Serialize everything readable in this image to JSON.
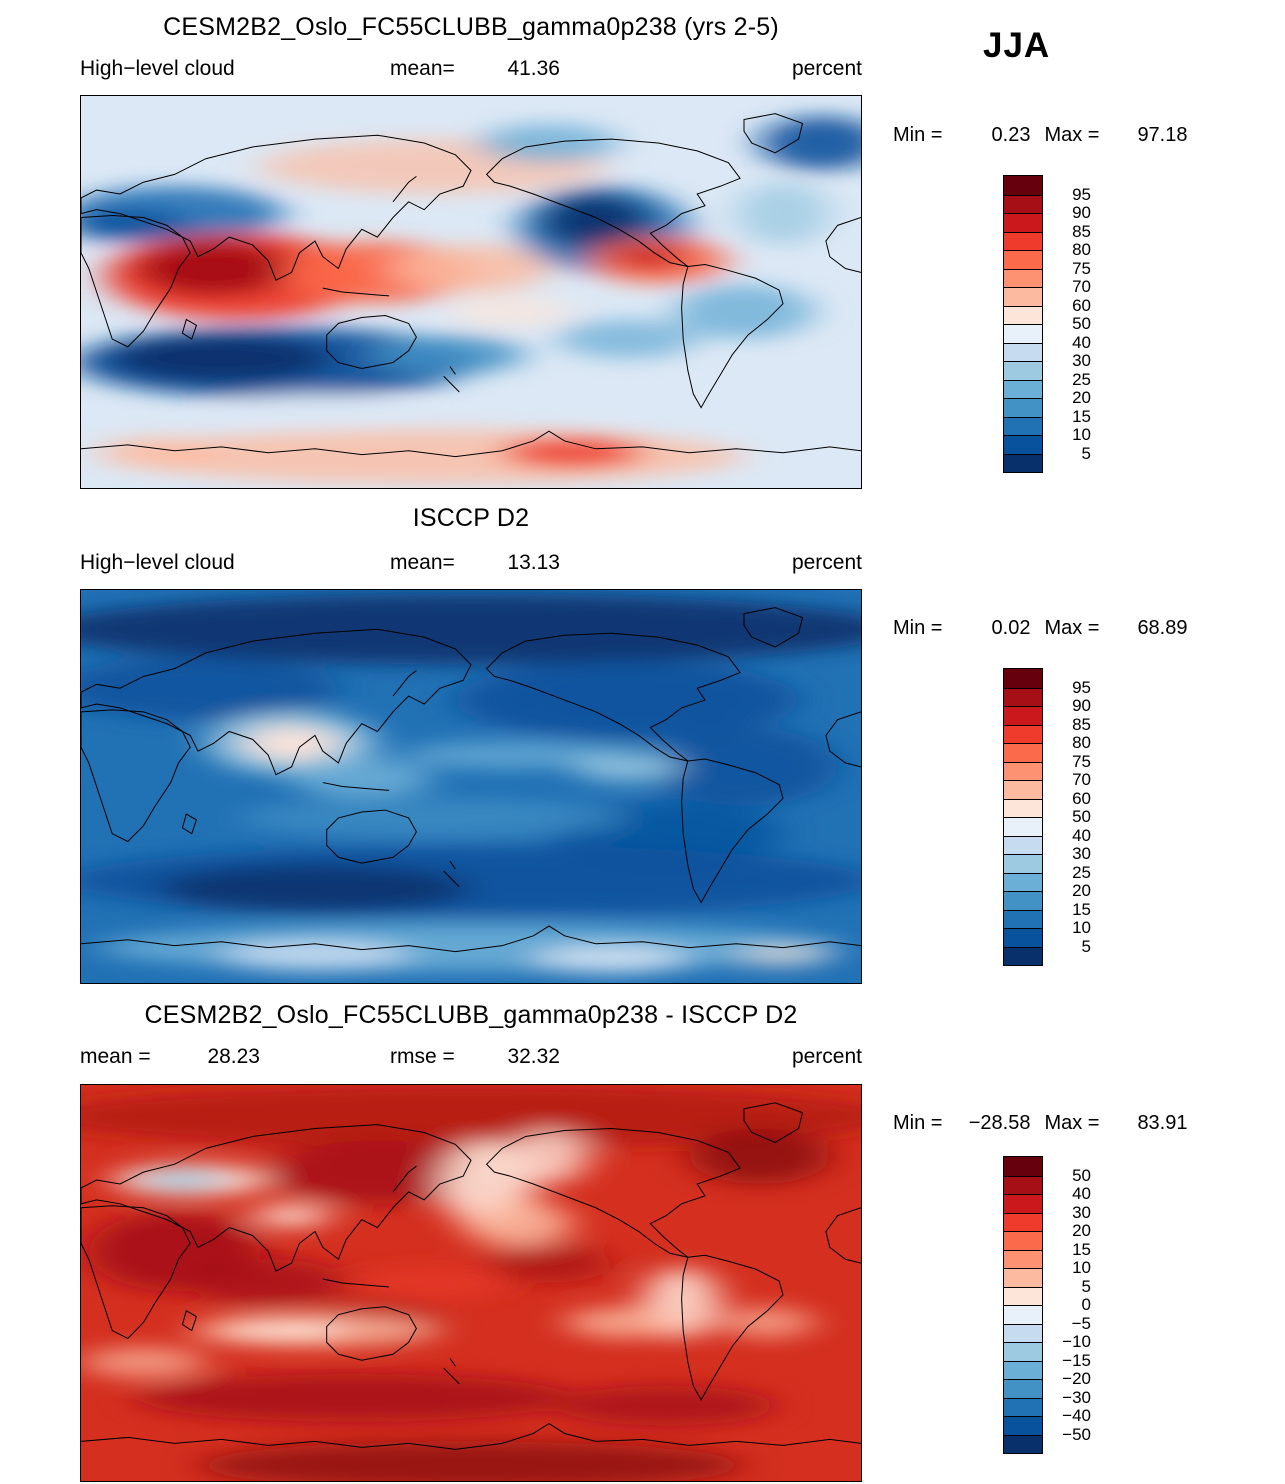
{
  "header": {
    "season": "JJA"
  },
  "panels": [
    {
      "title": "CESM2B2_Oslo_FC55CLUBB_gamma0p238 (yrs 2-5)",
      "field_label": "High−level cloud",
      "mean_label": "mean=",
      "mean_value": "41.36",
      "units": "percent",
      "min_label": "Min =",
      "min_value": "0.23",
      "max_label": "Max =",
      "max_value": "97.18",
      "ticks": [
        "95",
        "90",
        "85",
        "80",
        "75",
        "70",
        "60",
        "50",
        "40",
        "30",
        "25",
        "20",
        "15",
        "10",
        "5"
      ]
    },
    {
      "title": "ISCCP D2",
      "field_label": "High−level cloud",
      "mean_label": "mean=",
      "mean_value": "13.13",
      "units": "percent",
      "min_label": "Min =",
      "min_value": "0.02",
      "max_label": "Max =",
      "max_value": "68.89",
      "ticks": [
        "95",
        "90",
        "85",
        "80",
        "75",
        "70",
        "60",
        "50",
        "40",
        "30",
        "25",
        "20",
        "15",
        "10",
        "5"
      ]
    },
    {
      "title": "CESM2B2_Oslo_FC55CLUBB_gamma0p238 - ISCCP D2",
      "mean_label": "mean =",
      "mean_value": "28.23",
      "rmse_label": "rmse =",
      "rmse_value": "32.32",
      "units": "percent",
      "min_label": "Min =",
      "min_value": "−28.58",
      "max_label": "Max =",
      "max_value": "83.91",
      "ticks": [
        "50",
        "40",
        "30",
        "20",
        "15",
        "10",
        "5",
        "0",
        "−5",
        "−10",
        "−15",
        "−20",
        "−30",
        "−40",
        "−50"
      ]
    }
  ],
  "chart_data": {
    "type": "heatmap",
    "season": "JJA",
    "variable": "High-level cloud",
    "units": "percent",
    "panel_stats": [
      {
        "name": "CESM2B2_Oslo_FC55CLUBB_gamma0p238 (yrs 2-5)",
        "mean": 41.36,
        "min": 0.23,
        "max": 97.18,
        "contour_levels": [
          5,
          10,
          15,
          20,
          25,
          30,
          40,
          50,
          60,
          70,
          75,
          80,
          85,
          90,
          95
        ]
      },
      {
        "name": "ISCCP D2",
        "mean": 13.13,
        "min": 0.02,
        "max": 68.89,
        "contour_levels": [
          5,
          10,
          15,
          20,
          25,
          30,
          40,
          50,
          60,
          70,
          75,
          80,
          85,
          90,
          95
        ]
      },
      {
        "name": "CESM2B2_Oslo_FC55CLUBB_gamma0p238 - ISCCP D2",
        "mean": 28.23,
        "rmse": 32.32,
        "min": -28.58,
        "max": 83.91,
        "contour_levels": [
          -50,
          -40,
          -30,
          -20,
          -15,
          -10,
          -5,
          0,
          5,
          10,
          15,
          20,
          30,
          40,
          50
        ]
      }
    ],
    "colorbar_colors": [
      "#67000d",
      "#a50f15",
      "#cb181d",
      "#ef3b2c",
      "#fb6a4a",
      "#fc9272",
      "#fcbba1",
      "#fee5d9",
      "#e8f0fa",
      "#c6dbef",
      "#9ecae1",
      "#6baed6",
      "#4292c6",
      "#2171b5",
      "#08519c",
      "#08306b"
    ],
    "maps": [
      {
        "base": "#dce8f5",
        "blobs": [
          [
            45,
            18,
            22,
            7,
            "#fcbba1",
            0.7
          ],
          [
            12,
            30,
            14,
            7,
            "#2171b5",
            0.9
          ],
          [
            6,
            33,
            8,
            4,
            "#08519c",
            0.9
          ],
          [
            20,
            46,
            17,
            11,
            "#ef3b2c",
            0.95
          ],
          [
            17,
            44,
            10,
            7,
            "#a50f15",
            0.95
          ],
          [
            38,
            45,
            12,
            8,
            "#fb6a4a",
            0.9
          ],
          [
            50,
            44,
            10,
            6,
            "#fcbba1",
            0.85
          ],
          [
            25,
            68,
            26,
            9,
            "#08519c",
            0.95
          ],
          [
            18,
            67,
            14,
            6,
            "#08306b",
            0.95
          ],
          [
            47,
            66,
            10,
            5,
            "#4292c6",
            0.85
          ],
          [
            67,
            34,
            11,
            11,
            "#2171b5",
            0.9
          ],
          [
            66,
            32,
            7,
            7,
            "#08306b",
            0.9
          ],
          [
            95,
            12,
            8,
            7,
            "#08519c",
            0.9
          ],
          [
            60,
            12,
            9,
            5,
            "#6baed6",
            0.8
          ],
          [
            74,
            42,
            9,
            6,
            "#fb6a4a",
            0.9
          ],
          [
            73,
            41,
            4.5,
            3,
            "#cb181d",
            0.9
          ],
          [
            85,
            55,
            9,
            7,
            "#6baed6",
            0.8
          ],
          [
            70,
            62,
            9,
            5,
            "#6baed6",
            0.75
          ],
          [
            45,
            92,
            40,
            7,
            "#fcbba1",
            0.8
          ],
          [
            63,
            91,
            9,
            4,
            "#ef3b2c",
            0.85
          ],
          [
            10,
            91,
            8,
            4,
            "#fcbba1",
            0.8
          ],
          [
            30,
            80,
            12,
            4,
            "#dce8f5",
            0.9
          ],
          [
            90,
            30,
            6,
            8,
            "#9ecae1",
            0.8
          ],
          [
            55,
            55,
            8,
            4,
            "#fee5d9",
            0.7
          ]
        ]
      },
      {
        "base": "#2171b5",
        "blobs": [
          [
            50,
            10,
            55,
            9,
            "#08306b",
            0.9
          ],
          [
            15,
            25,
            18,
            8,
            "#08519c",
            0.85
          ],
          [
            70,
            28,
            22,
            10,
            "#08519c",
            0.9
          ],
          [
            85,
            45,
            12,
            10,
            "#08519c",
            0.85
          ],
          [
            50,
            74,
            52,
            9,
            "#08519c",
            0.9
          ],
          [
            30,
            76,
            20,
            6,
            "#08306b",
            0.85
          ],
          [
            75,
            62,
            15,
            8,
            "#08519c",
            0.8
          ],
          [
            45,
            58,
            25,
            5,
            "#4292c6",
            0.7
          ],
          [
            27,
            39,
            11,
            8,
            "#9ecae1",
            0.9
          ],
          [
            27,
            39,
            6,
            4.5,
            "#fee5d9",
            0.95
          ],
          [
            36,
            48,
            9,
            5,
            "#6baed6",
            0.9
          ],
          [
            55,
            42,
            14,
            3.5,
            "#6baed6",
            0.8
          ],
          [
            70,
            45,
            7,
            4,
            "#9ecae1",
            0.8
          ],
          [
            50,
            91,
            48,
            6,
            "#6baed6",
            0.9
          ],
          [
            30,
            93,
            12,
            4,
            "#c6dbef",
            0.9
          ],
          [
            68,
            94,
            10,
            3.5,
            "#dce8f5",
            0.85
          ],
          [
            90,
            93,
            6,
            3,
            "#fee5d9",
            0.6
          ]
        ]
      },
      {
        "base": "#d42f1f",
        "blobs": [
          [
            50,
            8,
            55,
            8,
            "#b11a12",
            0.8
          ],
          [
            38,
            22,
            14,
            8,
            "#a50f15",
            0.85
          ],
          [
            87,
            18,
            9,
            7,
            "#8b0a0f",
            0.85
          ],
          [
            12,
            42,
            11,
            10,
            "#a50f15",
            0.9
          ],
          [
            24,
            50,
            10,
            6,
            "#a50f15",
            0.8
          ],
          [
            60,
            45,
            8,
            5,
            "#a50f15",
            0.7
          ],
          [
            35,
            79,
            28,
            6,
            "#a50f15",
            0.85
          ],
          [
            75,
            81,
            14,
            5,
            "#a50f15",
            0.8
          ],
          [
            50,
            96,
            35,
            6,
            "#8b0a0f",
            0.8
          ],
          [
            38,
            60,
            8,
            6,
            "#b11a12",
            0.7
          ],
          [
            14,
            24,
            10,
            4,
            "#fee5d9",
            0.95
          ],
          [
            13,
            24,
            6,
            2.5,
            "#9ecae1",
            0.95
          ],
          [
            52,
            25,
            6,
            11,
            "#fee5d9",
            0.9
          ],
          [
            60,
            18,
            5,
            7,
            "#fee5d9",
            0.8
          ],
          [
            56,
            35,
            7,
            6,
            "#fcbba1",
            0.85
          ],
          [
            27,
            33,
            5,
            3,
            "#fee5d9",
            0.85
          ],
          [
            30,
            62,
            16,
            4,
            "#fcbba1",
            0.85
          ],
          [
            26,
            62,
            8,
            2.5,
            "#fee5d9",
            0.9
          ],
          [
            77,
            55,
            5,
            9,
            "#fee5d9",
            0.85
          ],
          [
            70,
            60,
            8,
            4,
            "#fcbba1",
            0.8
          ],
          [
            88,
            60,
            6,
            4,
            "#fcbba1",
            0.7
          ],
          [
            45,
            50,
            10,
            4,
            "#ef3b2c",
            0.6
          ],
          [
            8,
            70,
            8,
            4,
            "#fcbba1",
            0.7
          ]
        ]
      }
    ],
    "coastline_paths": [
      "M0,26 L2,24 L5,25 L8,22 L12,20 L16,16 L22,13 L30,11 L38,10 L44,12 L48,15 L50,19 L49,23 L46,25 L44,29 L42,27 L40,31 L38,36 L36,34 L34,39 L33,44 L31,41 L30,37 L28,40 L27,45 L25,47 L24,42 L22,38 L19,36 L17,39 L15,41 L14,37 L11,34 L8,32 L5,30 L2,29 L0,30 Z",
      "M0,31 L4,30.5 L8,31 L11,33 L13,36 L14,40 L12.5,44 L11.5,49 L9.5,55 L8,60 L6,64 L4,62 L3,56 L2,50 L1,44 L0,40 Z",
      "M100,31 L97,33 L95.5,37 L96,41 L98,44 L100,45",
      "M13.5,57 L14.8,58.5 L14.2,62 L13,60.5 Z",
      "M31.5,61 L33,58 L36,56.5 L39,56 L42,58 L43,61.5 L42,65 L40,68 L36,69.5 L33,68 L31.5,65 Z",
      "M46.5,71.5 L47.5,73.5 L48.5,75.5 M47.3,69 L48,71",
      "M52,20 L54,16 L57,13 L62,11.5 L68,11 L74,12 L79,14 L83,17 L84.5,21 L82,23 L79,25 L80,28 L77,30 L75,33 L73,35 L74.5,38 L76.5,41.5 L77.8,43.5 L75.5,42.5 L73.5,40 L71.5,37 L69,34 L66,31 L62,28 L58,25 L55,23 L53,22 Z",
      "M85,6 L89,4.5 L92.5,7 L92,11 L89,14.5 L86,12 L85,9 Z",
      "M77.8,43.5 L80,43 L83,44.5 L86.5,46.5 L89.5,49.5 L90,53 L88,57 L85.5,61 L83.5,66 L82,71 L80.5,76 L79.5,79.5 L78.5,76 L77.8,70 L77.2,62 L77,54 L77.2,48 Z",
      "M0,90 L6,89 L12,90.5 L18,89.5 L24,91 L30,90 L36,91.5 L42,90.5 L48,92 L54,90.5 L58,88 L60,85.5 L62,88 L66,90 L72,89.5 L78,91 L84,90 L90,91 L96,89.5 L100,90.5",
      "M40,27 L41,24.5 L42,22 L43,20.5",
      "M31,49 L33.5,50 L36.5,50.5 L39.5,51"
    ]
  }
}
